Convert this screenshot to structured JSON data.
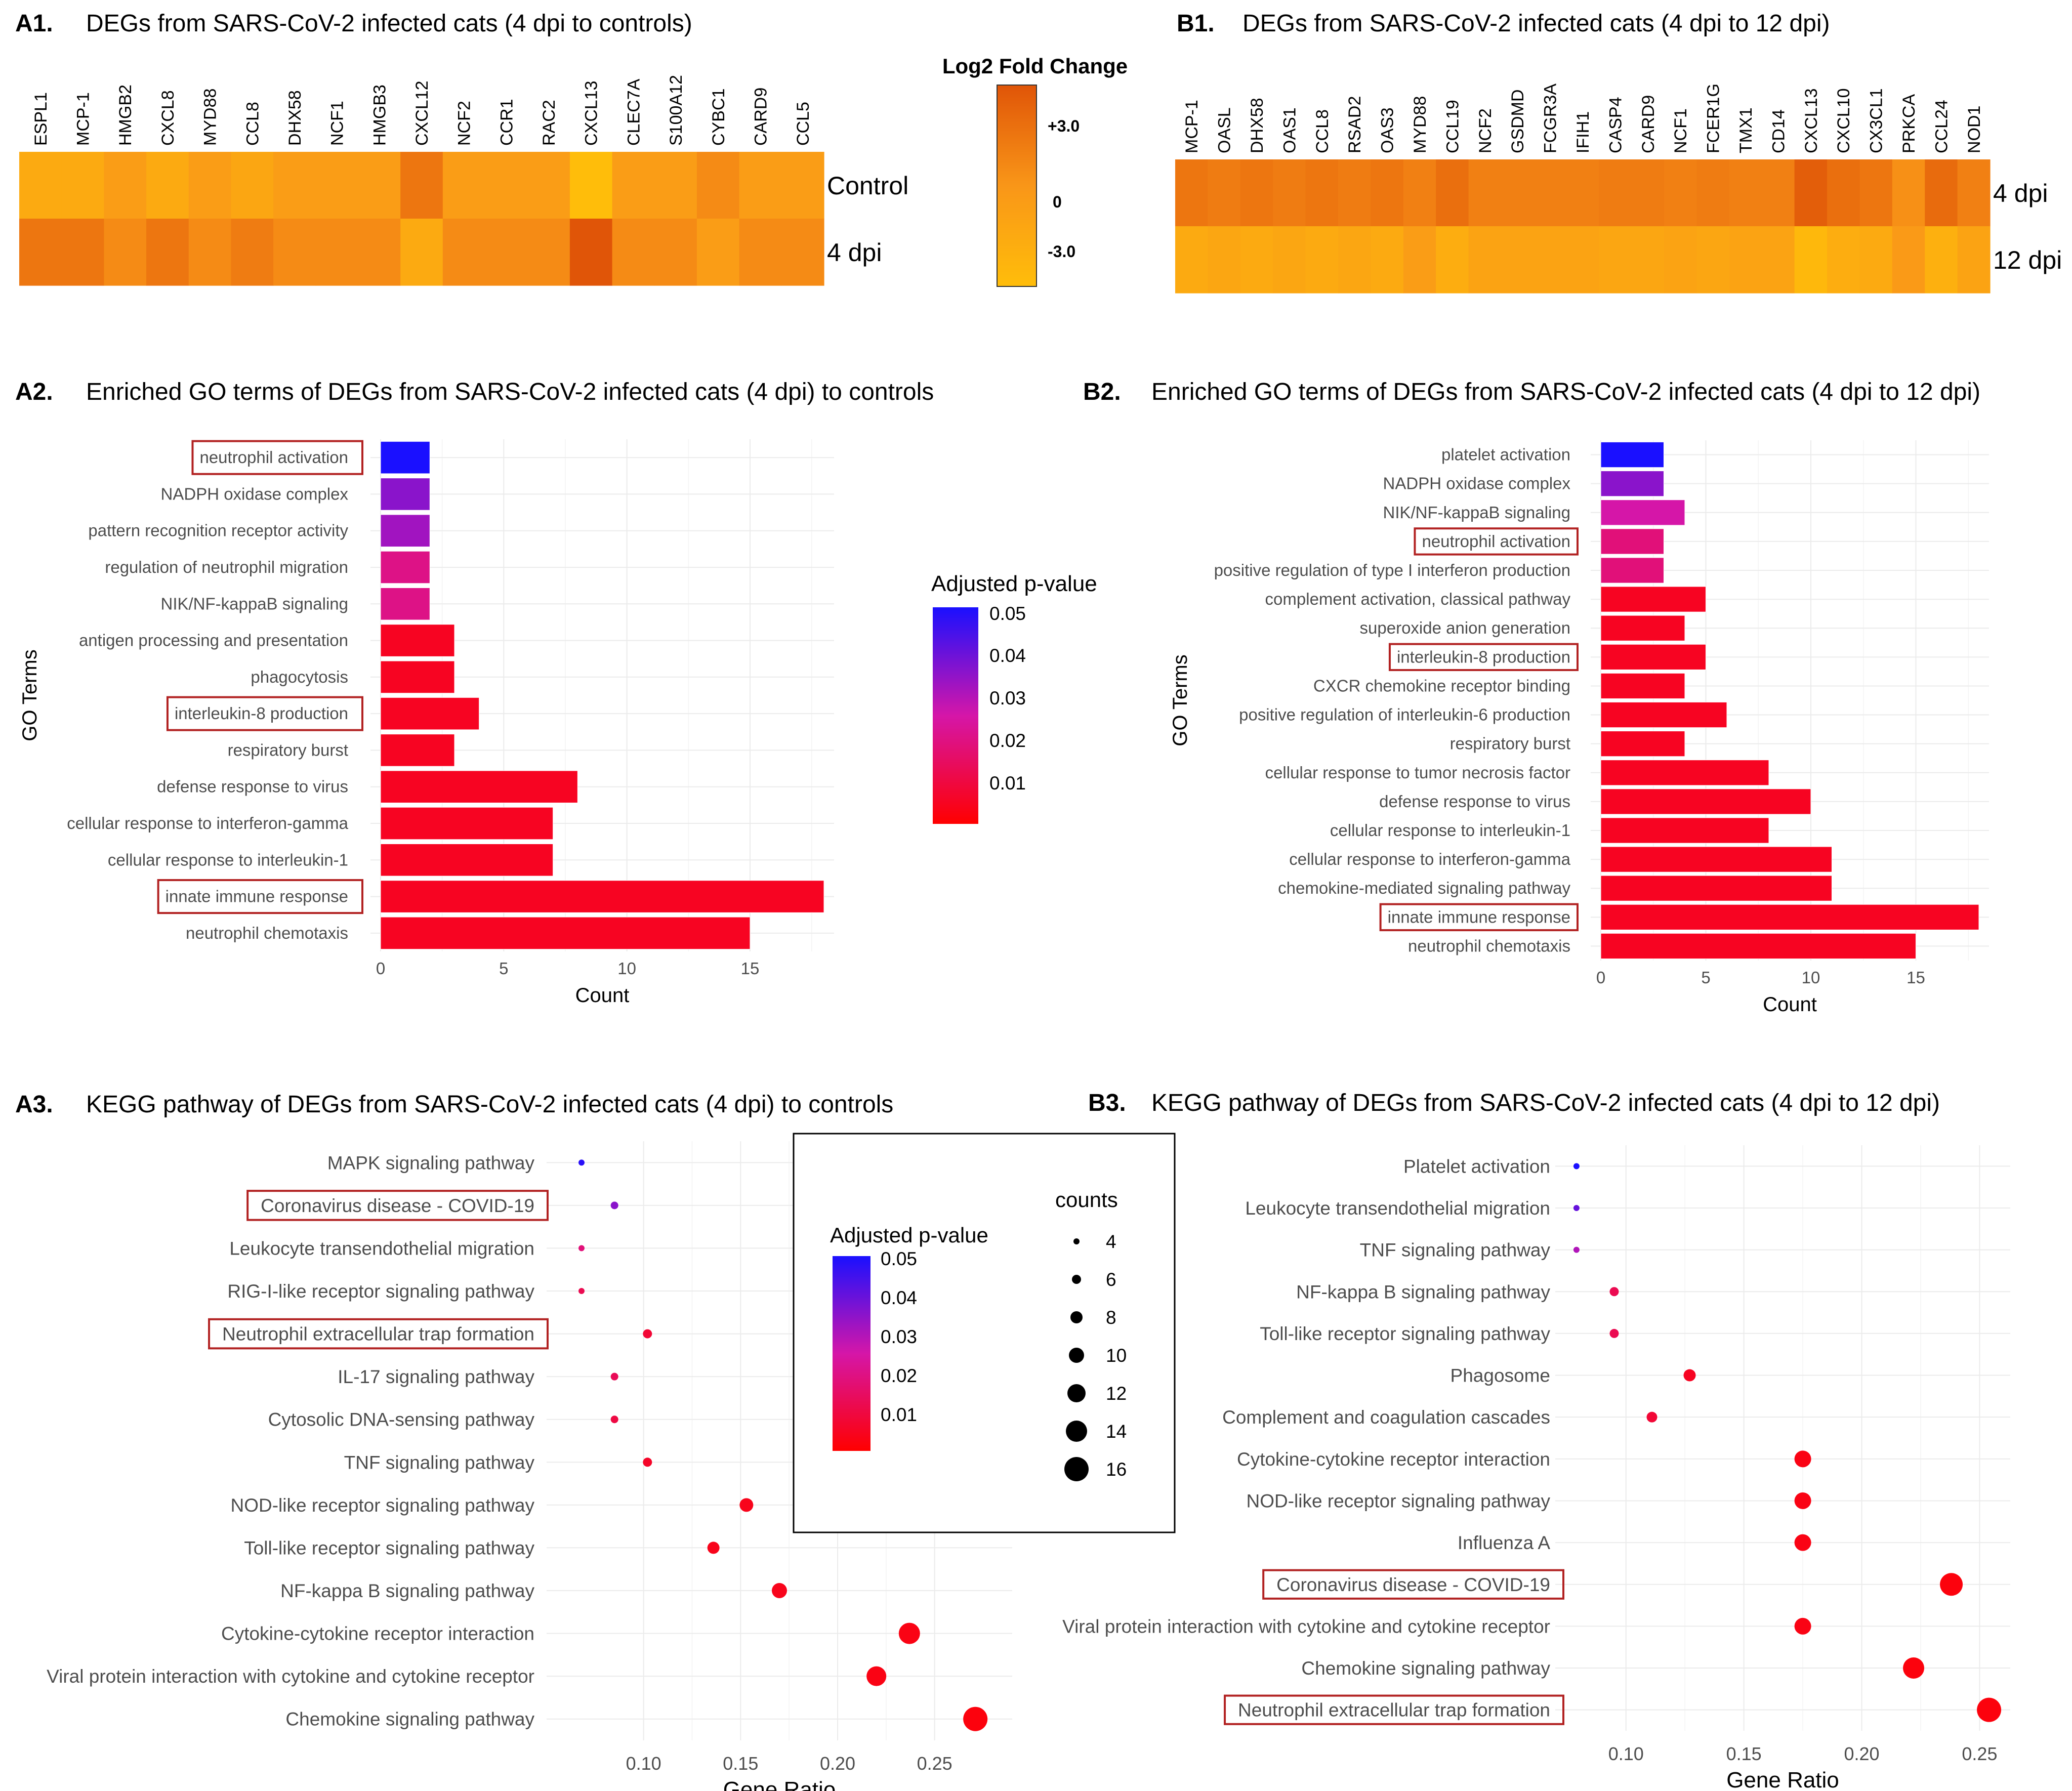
{
  "colors": {
    "heat_low": "#ffbd0a",
    "heat_mid": "#f99618",
    "heat_high": "#e05508",
    "padj_low": "#ff0000",
    "padj_mid": "#d516a8",
    "padj_high": "#1a10ff",
    "highlight": "#b22222",
    "grid": "#ebebeb"
  },
  "panels": {
    "A1": {
      "label": "A1.",
      "title": "DEGs from SARS-CoV-2 infected cats (4 dpi to controls)"
    },
    "B1": {
      "label": "B1.",
      "title": "DEGs from SARS-CoV-2 infected cats (4 dpi to 12 dpi)"
    },
    "A2": {
      "label": "A2.",
      "title": "Enriched GO terms of DEGs from SARS-CoV-2 infected cats (4 dpi) to controls"
    },
    "B2": {
      "label": "B2.",
      "title": "Enriched GO terms of DEGs from SARS-CoV-2 infected cats (4 dpi to 12 dpi)"
    },
    "A3": {
      "label": "A3.",
      "title": "KEGG pathway of DEGs from SARS-CoV-2 infected cats (4 dpi) to controls"
    },
    "B3": {
      "label": "B3.",
      "title": "KEGG pathway of DEGs from SARS-CoV-2 infected cats (4 dpi  to 12 dpi)"
    }
  },
  "legends": {
    "log2fc": {
      "title": "Log2 Fold Change",
      "ticks": [
        "+3.0",
        "0",
        "-3.0"
      ]
    },
    "padj": {
      "title": "Adjusted p-value",
      "ticks": [
        "0.05",
        "0.04",
        "0.03",
        "0.02",
        "0.01"
      ]
    },
    "counts": {
      "title": "counts",
      "ticks": [
        "4",
        "6",
        "8",
        "10",
        "12",
        "14",
        "16"
      ]
    }
  },
  "chart_data": [
    {
      "id": "A1",
      "type": "heatmap",
      "columns": [
        "ESPL1",
        "MCP-1",
        "HMGB2",
        "CXCL8",
        "MYD88",
        "CCL8",
        "DHX58",
        "NCF1",
        "HMGB3",
        "CXCL12",
        "NCF2",
        "CCR1",
        "RAC2",
        "CXCL13",
        "CLEC7A",
        "S100A12",
        "CYBC1",
        "CARD9",
        "CCL5"
      ],
      "rows": [
        "Control",
        "4 dpi"
      ],
      "values": [
        [
          -1.5,
          -1.5,
          -0.5,
          -1.5,
          -0.5,
          -1.2,
          -0.5,
          -0.5,
          -0.5,
          1.5,
          -0.5,
          -0.5,
          -0.5,
          -3.0,
          -0.5,
          -0.5,
          0.5,
          -0.5,
          -0.5
        ],
        [
          1.5,
          1.5,
          0.5,
          1.5,
          0.5,
          1.2,
          0.5,
          0.5,
          0.5,
          -1.5,
          0.5,
          0.5,
          0.5,
          3.0,
          0.5,
          0.5,
          -0.5,
          0.5,
          0.5
        ]
      ],
      "scale": [
        -3.0,
        3.0
      ]
    },
    {
      "id": "B1",
      "type": "heatmap",
      "columns": [
        "MCP-1",
        "OASL",
        "DHX58",
        "OAS1",
        "CCL8",
        "RSAD2",
        "OAS3",
        "MYD88",
        "CCL19",
        "NCF2",
        "GSDMD",
        "FCGR3A",
        "IFIH1",
        "CASP4",
        "CARD9",
        "NCF1",
        "FCER1G",
        "TMX1",
        "CD14",
        "CXCL13",
        "CXCL10",
        "CX3CL1",
        "PRKCA",
        "CCL24",
        "NOD1"
      ],
      "rows": [
        "4 dpi",
        "12 dpi"
      ],
      "values": [
        [
          1.5,
          1.2,
          1.5,
          1.2,
          1.5,
          1.2,
          1.5,
          1.0,
          1.8,
          1.0,
          1.0,
          1.0,
          1.0,
          1.2,
          1.2,
          1.0,
          1.2,
          1.0,
          1.0,
          2.6,
          1.8,
          1.5,
          0.3,
          2.0,
          1.0
        ],
        [
          -1.5,
          -1.2,
          -1.5,
          -1.2,
          -1.5,
          -1.2,
          -1.5,
          -0.5,
          -1.8,
          -1.0,
          -1.0,
          -1.0,
          -1.0,
          -1.2,
          -1.2,
          -1.0,
          -1.2,
          -1.0,
          -1.0,
          -2.6,
          -1.8,
          -1.5,
          -0.3,
          -2.0,
          -1.0
        ]
      ],
      "scale": [
        -3.0,
        3.0
      ]
    },
    {
      "id": "A2",
      "type": "bar",
      "orientation": "horizontal",
      "ylabel": "GO Terms",
      "xlabel": "Count",
      "xlim": [
        0,
        18
      ],
      "xticks": [
        0,
        5,
        10,
        15
      ],
      "categories": [
        "neutrophil activation",
        "NADPH oxidase complex",
        "pattern recognition receptor activity",
        "regulation of neutrophil migration",
        "NIK/NF-kappaB signaling",
        "antigen processing and presentation",
        "phagocytosis",
        "interleukin-8 production",
        "respiratory burst",
        "defense response to virus",
        "cellular response to interferon-gamma",
        "cellular response to interleukin-1",
        "innate immune response",
        "neutrophil chemotaxis"
      ],
      "values": [
        2,
        2,
        2,
        2,
        2,
        3,
        3,
        4,
        3,
        8,
        7,
        7,
        18,
        15
      ],
      "padj": [
        0.05,
        0.035,
        0.032,
        0.02,
        0.02,
        0.005,
        0.005,
        0.005,
        0.005,
        0.005,
        0.005,
        0.005,
        0.005,
        0.005
      ],
      "highlighted": [
        "neutrophil activation",
        "interleukin-8 production",
        "innate immune response"
      ]
    },
    {
      "id": "B2",
      "type": "bar",
      "orientation": "horizontal",
      "ylabel": "GO Terms",
      "xlabel": "Count",
      "xlim": [
        0,
        18
      ],
      "xticks": [
        0,
        5,
        10,
        15
      ],
      "categories": [
        "platelet activation",
        "NADPH oxidase complex",
        "NIK/NF-kappaB signaling",
        "neutrophil activation",
        "positive regulation of type I interferon production",
        "complement activation, classical pathway",
        "superoxide anion generation",
        "interleukin-8 production",
        "CXCR chemokine receptor binding",
        "positive regulation of interleukin-6 production",
        "respiratory burst",
        "cellular response to tumor necrosis factor",
        "defense response to virus",
        "cellular response to interleukin-1",
        "cellular response to interferon-gamma",
        "chemokine-mediated signaling pathway",
        "innate immune response",
        "neutrophil chemotaxis"
      ],
      "values": [
        3,
        3,
        4,
        3,
        3,
        5,
        4,
        5,
        4,
        6,
        4,
        8,
        10,
        8,
        11,
        11,
        18,
        15
      ],
      "padj": [
        0.05,
        0.035,
        0.025,
        0.018,
        0.018,
        0.005,
        0.005,
        0.005,
        0.005,
        0.005,
        0.005,
        0.005,
        0.005,
        0.005,
        0.005,
        0.005,
        0.005,
        0.005
      ],
      "highlighted": [
        "neutrophil activation",
        "interleukin-8 production",
        "innate immune response"
      ]
    },
    {
      "id": "A3",
      "type": "scatter",
      "xlabel": "Gene Ratio",
      "xlim": [
        0.05,
        0.29
      ],
      "xticks": [
        "0.10",
        "0.15",
        "0.20",
        "0.25"
      ],
      "categories": [
        "MAPK signaling pathway",
        "Coronavirus disease - COVID-19",
        "Leukocyte transendothelial migration",
        "RIG-I-like receptor signaling pathway",
        "Neutrophil extracellular trap formation",
        "IL-17 signaling pathway",
        "Cytosolic DNA-sensing pathway",
        "TNF signaling pathway",
        "NOD-like receptor signaling pathway",
        "Toll-like receptor signaling pathway",
        "NF-kappa B signaling pathway",
        "Cytokine-cytokine receptor interaction",
        "Viral protein interaction with cytokine and cytokine receptor",
        "Chemokine signaling pathway"
      ],
      "x": [
        0.068,
        0.085,
        0.068,
        0.068,
        0.102,
        0.085,
        0.085,
        0.102,
        0.153,
        0.136,
        0.17,
        0.237,
        0.22,
        0.271
      ],
      "counts": [
        4,
        5,
        4,
        4,
        6,
        5,
        5,
        6,
        9,
        8,
        10,
        14,
        13,
        16
      ],
      "padj": [
        0.048,
        0.035,
        0.018,
        0.012,
        0.008,
        0.013,
        0.01,
        0.006,
        0.004,
        0.004,
        0.004,
        0.003,
        0.003,
        0.002
      ],
      "highlighted": [
        "Coronavirus disease - COVID-19",
        "Neutrophil extracellular trap formation"
      ]
    },
    {
      "id": "B3",
      "type": "scatter",
      "xlabel": "Gene Ratio",
      "xlim": [
        0.07,
        0.263
      ],
      "xticks": [
        "0.10",
        "0.15",
        "0.20",
        "0.25"
      ],
      "categories": [
        "Platelet activation",
        "Leukocyte transendothelial migration",
        "TNF signaling pathway",
        "NF-kappa B signaling pathway",
        "Toll-like receptor signaling pathway",
        "Phagosome",
        "Complement and coagulation cascades",
        "Cytokine-cytokine receptor interaction",
        "NOD-like receptor signaling pathway",
        "Influenza A",
        "Coronavirus disease - COVID-19",
        "Viral protein interaction with cytokine and cytokine receptor",
        "Chemokine signaling pathway",
        "Neutrophil extracellular trap formation"
      ],
      "x": [
        0.079,
        0.079,
        0.079,
        0.095,
        0.095,
        0.127,
        0.111,
        0.175,
        0.175,
        0.175,
        0.238,
        0.175,
        0.222,
        0.254
      ],
      "counts": [
        4,
        4,
        4,
        6,
        6,
        8,
        7,
        11,
        11,
        11,
        15,
        11,
        14,
        16
      ],
      "padj": [
        0.05,
        0.04,
        0.03,
        0.012,
        0.012,
        0.005,
        0.008,
        0.003,
        0.003,
        0.003,
        0.002,
        0.003,
        0.002,
        0.002
      ],
      "highlighted": [
        "Coronavirus disease - COVID-19",
        "Neutrophil extracellular trap formation"
      ]
    }
  ]
}
